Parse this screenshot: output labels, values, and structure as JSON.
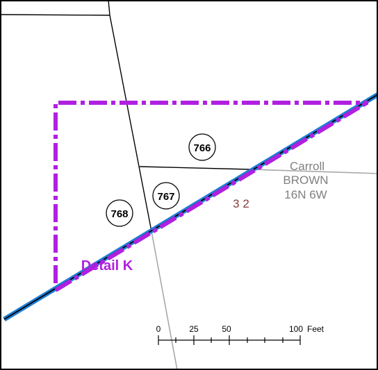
{
  "map": {
    "parcels": [
      {
        "id": "parcel-766",
        "number": "766"
      },
      {
        "id": "parcel-767",
        "number": "767"
      },
      {
        "id": "parcel-768",
        "number": "768"
      }
    ],
    "township": {
      "line1": "Carroll",
      "line2": "BROWN",
      "line3": "16N 6W"
    },
    "section_number": "3 2",
    "detail_label": "Detail K",
    "scale_bar": {
      "ticks": [
        "0",
        "25",
        "50",
        "100"
      ],
      "unit": "Feet"
    },
    "colors": {
      "detail_boundary": "#b020e0",
      "road_outer": "#1e7fd6",
      "road_center": "#000000",
      "parcel_line": "#000000",
      "section_line": "#a8a8a8",
      "section_number": "#8b3a3a",
      "township_text": "#808080",
      "frame": "#000000"
    }
  }
}
